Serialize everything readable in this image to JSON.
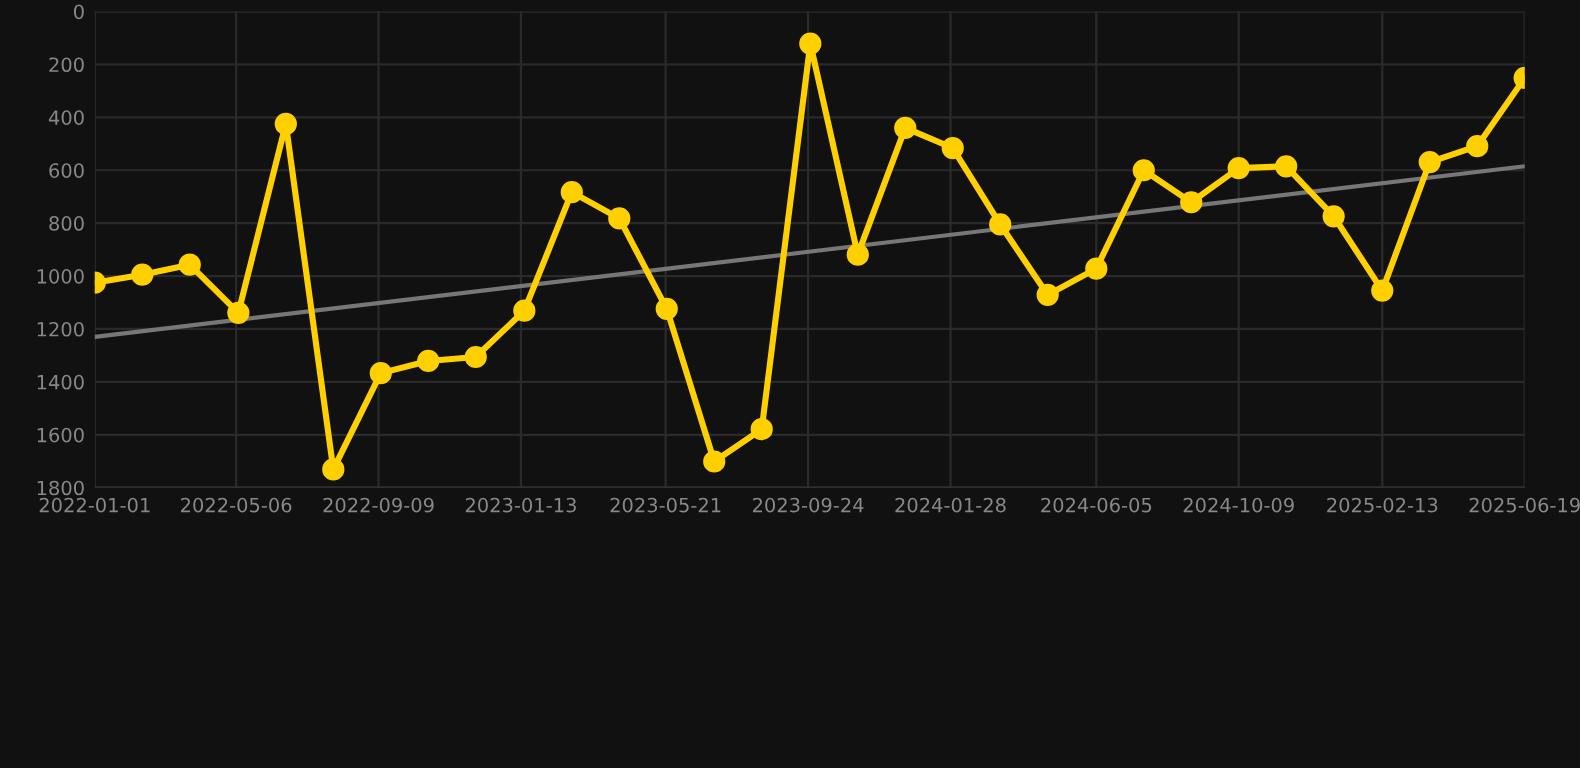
{
  "chart_data": {
    "type": "line",
    "xlim": [
      "2022-01-01",
      "2025-06-19"
    ],
    "xticks": [
      "2022-01-01",
      "2022-05-06",
      "2022-09-09",
      "2023-01-13",
      "2023-05-21",
      "2023-09-24",
      "2024-01-28",
      "2024-06-05",
      "2024-10-09",
      "2025-02-13",
      "2025-06-19"
    ],
    "ylim": [
      1800,
      0
    ],
    "yticks": [
      0,
      200,
      400,
      600,
      800,
      1000,
      1200,
      1400,
      1600,
      1800
    ],
    "grid": true,
    "series": [
      {
        "color": "#ffd000",
        "marker": "circle",
        "line_style": "solid",
        "x": [
          "2022-01-01",
          "2022-02-12",
          "2022-03-26",
          "2022-05-08",
          "2022-06-19",
          "2022-07-31",
          "2022-09-11",
          "2022-10-23",
          "2022-12-04",
          "2023-01-16",
          "2023-02-27",
          "2023-04-10",
          "2023-05-22",
          "2023-07-03",
          "2023-08-14",
          "2023-09-26",
          "2023-11-07",
          "2023-12-19",
          "2024-01-30",
          "2024-03-12",
          "2024-04-23",
          "2024-06-05",
          "2024-07-17",
          "2024-08-28",
          "2024-10-09",
          "2024-11-20",
          "2025-01-01",
          "2025-02-13",
          "2025-03-27",
          "2025-05-08",
          "2025-06-19"
        ],
        "values": [
          1025,
          995,
          957,
          1139,
          425,
          1731,
          1367,
          1321,
          1306,
          1131,
          683,
          782,
          1124,
          1701,
          1579,
          121,
          919,
          440,
          516,
          805,
          1071,
          972,
          600,
          721,
          592,
          585,
          774,
          1055,
          569,
          509,
          251
        ]
      },
      {
        "color": "#777777",
        "marker": "none",
        "line_style": "solid",
        "x": [
          "2022-01-01",
          "2025-06-19"
        ],
        "values": [
          1230,
          585
        ]
      }
    ]
  }
}
